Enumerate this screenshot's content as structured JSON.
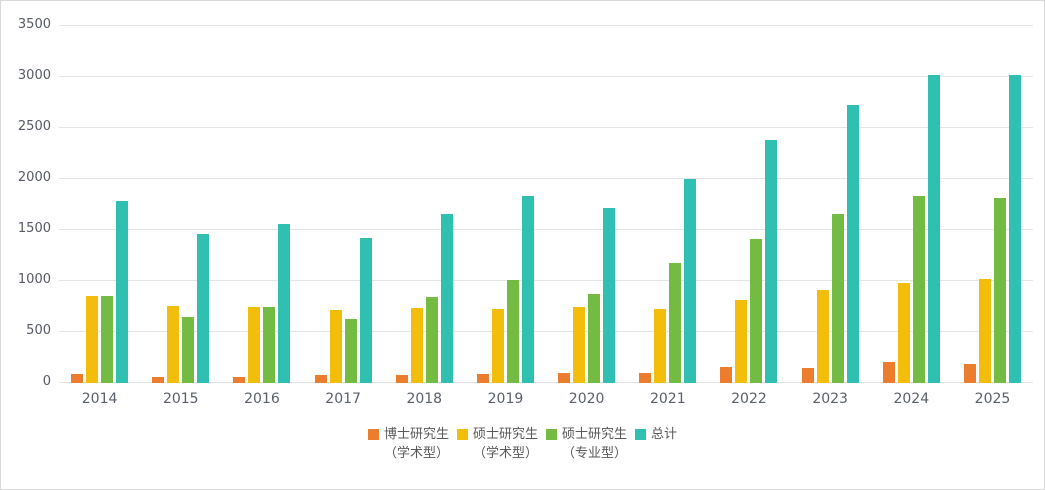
{
  "chart_data": {
    "type": "bar",
    "title": "",
    "xlabel": "",
    "ylabel": "",
    "categories": [
      "2014",
      "2015",
      "2016",
      "2017",
      "2018",
      "2019",
      "2020",
      "2021",
      "2022",
      "2023",
      "2024",
      "2025"
    ],
    "series": [
      {
        "name": "博士研究生（学术型）",
        "legend_lines": [
          "博士研究生",
          "（学术型）"
        ],
        "color": "#EC7D2E",
        "values": [
          85,
          55,
          60,
          75,
          80,
          90,
          95,
          95,
          160,
          150,
          210,
          190
        ]
      },
      {
        "name": "硕士研究生（学术型）",
        "legend_lines": [
          "硕士研究生",
          "（学术型）"
        ],
        "color": "#F2BD0B",
        "values": [
          850,
          760,
          750,
          720,
          735,
          730,
          750,
          730,
          815,
          915,
          980,
          1020
        ]
      },
      {
        "name": "硕士研究生（专业型）",
        "legend_lines": [
          "硕士研究生",
          "（专业型）"
        ],
        "color": "#74BB44",
        "values": [
          850,
          650,
          750,
          625,
          845,
          1010,
          870,
          1180,
          1410,
          1660,
          1830,
          1810
        ]
      },
      {
        "name": "总计",
        "legend_lines": [
          "总计"
        ],
        "color": "#2FC0B2",
        "values": [
          1785,
          1465,
          1560,
          1420,
          1660,
          1830,
          1715,
          2005,
          2385,
          2725,
          3020,
          3020
        ]
      }
    ],
    "ylim": [
      0,
      3500
    ],
    "y_ticks": [
      0,
      500,
      1000,
      1500,
      2000,
      2500,
      3000,
      3500
    ],
    "grid": true,
    "legend_position": "bottom"
  },
  "style": {
    "gridline_color": "#e4e4e4",
    "axis_label_color": "#595959",
    "legend_text_color": "#595959",
    "background_color": "#ffffff",
    "border_color": "#d9d9d9"
  }
}
